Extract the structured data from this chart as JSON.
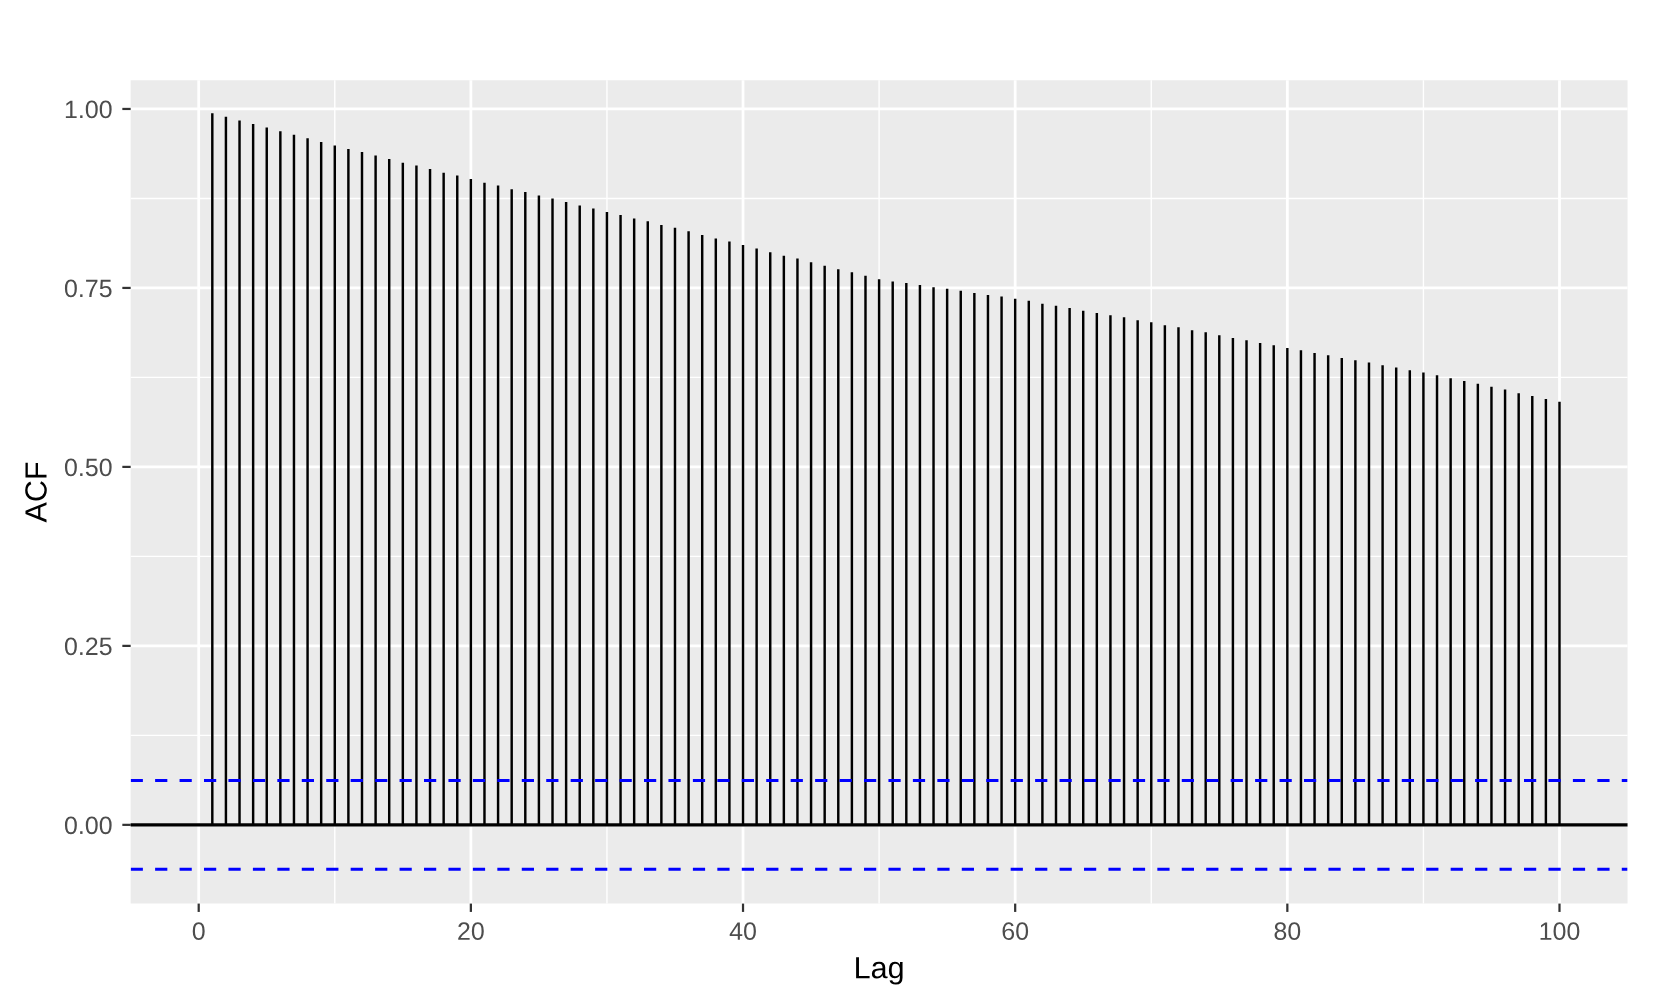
{
  "chart_data": {
    "type": "bar",
    "xlabel": "Lag",
    "ylabel": "ACF",
    "x": [
      1,
      2,
      3,
      4,
      5,
      6,
      7,
      8,
      9,
      10,
      11,
      12,
      13,
      14,
      15,
      16,
      17,
      18,
      19,
      20,
      21,
      22,
      23,
      24,
      25,
      26,
      27,
      28,
      29,
      30,
      31,
      32,
      33,
      34,
      35,
      36,
      37,
      38,
      39,
      40,
      41,
      42,
      43,
      44,
      45,
      46,
      47,
      48,
      49,
      50,
      51,
      52,
      53,
      54,
      55,
      56,
      57,
      58,
      59,
      60,
      61,
      62,
      63,
      64,
      65,
      66,
      67,
      68,
      69,
      70,
      71,
      72,
      73,
      74,
      75,
      76,
      77,
      78,
      79,
      80,
      81,
      82,
      83,
      84,
      85,
      86,
      87,
      88,
      89,
      90,
      91,
      92,
      93,
      94,
      95,
      96,
      97,
      98,
      99,
      100
    ],
    "values": [
      0.994,
      0.989,
      0.984,
      0.979,
      0.974,
      0.969,
      0.964,
      0.959,
      0.954,
      0.949,
      0.944,
      0.94,
      0.935,
      0.93,
      0.925,
      0.921,
      0.916,
      0.911,
      0.907,
      0.902,
      0.897,
      0.893,
      0.888,
      0.884,
      0.879,
      0.875,
      0.87,
      0.865,
      0.861,
      0.856,
      0.852,
      0.847,
      0.843,
      0.838,
      0.834,
      0.829,
      0.824,
      0.819,
      0.815,
      0.81,
      0.805,
      0.8,
      0.795,
      0.791,
      0.786,
      0.781,
      0.776,
      0.772,
      0.767,
      0.762,
      0.759,
      0.757,
      0.754,
      0.751,
      0.749,
      0.746,
      0.743,
      0.74,
      0.738,
      0.735,
      0.732,
      0.728,
      0.725,
      0.722,
      0.718,
      0.715,
      0.712,
      0.709,
      0.705,
      0.702,
      0.698,
      0.695,
      0.691,
      0.688,
      0.684,
      0.68,
      0.677,
      0.673,
      0.67,
      0.666,
      0.663,
      0.659,
      0.656,
      0.652,
      0.649,
      0.646,
      0.642,
      0.639,
      0.635,
      0.632,
      0.628,
      0.624,
      0.62,
      0.616,
      0.612,
      0.608,
      0.603,
      0.599,
      0.595,
      0.591
    ],
    "color": "#000000",
    "xlim": [
      -5,
      105
    ],
    "xticks": [
      0,
      20,
      40,
      60,
      80,
      100
    ],
    "ylim": [
      -0.11,
      1.04
    ],
    "yticks": [
      {
        "value": 0,
        "label": "0.00"
      },
      {
        "value": 0.25,
        "label": "0.25"
      },
      {
        "value": 0.5,
        "label": "0.50"
      },
      {
        "value": 0.75,
        "label": "0.75"
      },
      {
        "value": 1,
        "label": "1.00"
      }
    ],
    "ref_lines": [
      {
        "axis": "y",
        "value": 0,
        "label": null,
        "color": "#000000",
        "line_style": "solid"
      },
      {
        "axis": "y",
        "value": 0.062,
        "label": null,
        "color": "#0000ff",
        "line_style": "dashed"
      },
      {
        "axis": "y",
        "value": -0.062,
        "label": null,
        "color": "#0000ff",
        "line_style": "dashed"
      }
    ],
    "grid": true
  }
}
